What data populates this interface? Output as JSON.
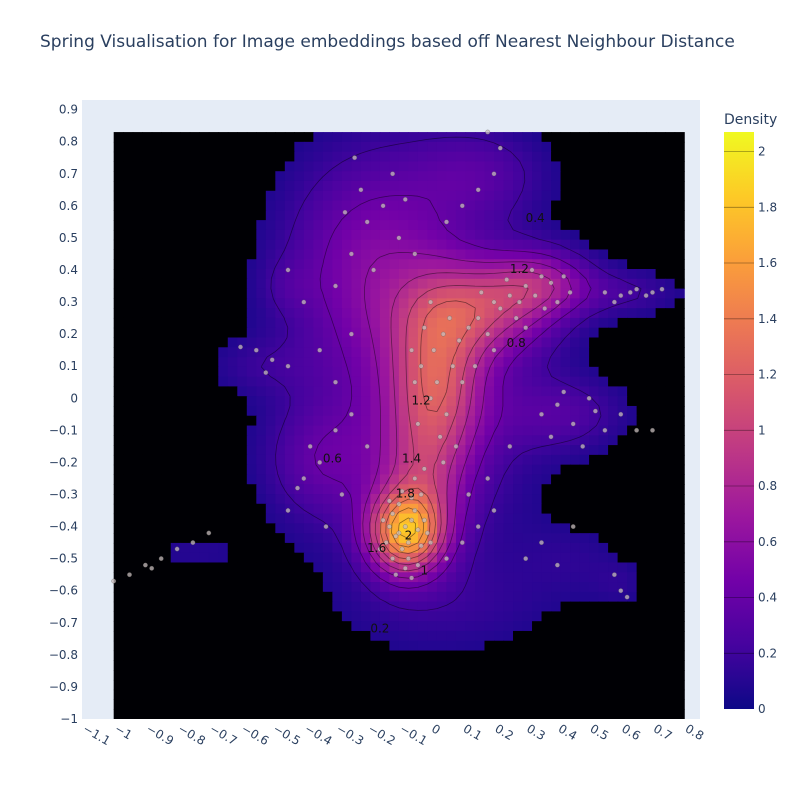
{
  "chart_data": {
    "type": "heatmap",
    "title": "Spring Visualisation for Image embeddings based off Nearest Neighbour Distance",
    "xlabel": "",
    "ylabel": "",
    "xlim": [
      -1.1,
      0.85
    ],
    "ylim": [
      -1.0,
      0.93
    ],
    "x_ticks": [
      "−1.1",
      "−1",
      "−0.9",
      "−0.8",
      "−0.7",
      "−0.6",
      "−0.5",
      "−0.4",
      "−0.3",
      "−0.2",
      "−0.1",
      "0",
      "0.1",
      "0.2",
      "0.3",
      "0.4",
      "0.5",
      "0.6",
      "0.7",
      "0.8"
    ],
    "x_tick_values": [
      -1.1,
      -1,
      -0.9,
      -0.8,
      -0.7,
      -0.6,
      -0.5,
      -0.4,
      -0.3,
      -0.2,
      -0.1,
      0,
      0.1,
      0.2,
      0.3,
      0.4,
      0.5,
      0.6,
      0.7,
      0.8
    ],
    "y_ticks": [
      "0.9",
      "0.8",
      "0.7",
      "0.6",
      "0.5",
      "0.4",
      "0.3",
      "0.2",
      "0.1",
      "0",
      "−0.1",
      "−0.2",
      "−0.3",
      "−0.4",
      "−0.5",
      "−0.6",
      "−0.7",
      "−0.8",
      "−0.9",
      "−1"
    ],
    "y_tick_values": [
      0.9,
      0.8,
      0.7,
      0.6,
      0.5,
      0.4,
      0.3,
      0.2,
      0.1,
      0,
      -0.1,
      -0.2,
      -0.3,
      -0.4,
      -0.5,
      -0.6,
      -0.7,
      -0.8,
      -0.9,
      -1
    ],
    "density_extent": {
      "x": [
        -1.0,
        0.8
      ],
      "y": [
        -1.0,
        0.83
      ]
    },
    "colorbar": {
      "title": "Density",
      "range": [
        0,
        2.07
      ],
      "ticks": [
        "0",
        "0.2",
        "0.4",
        "0.6",
        "0.8",
        "1",
        "1.2",
        "1.4",
        "1.6",
        "1.8",
        "2"
      ],
      "tick_values": [
        0,
        0.2,
        0.4,
        0.6,
        0.8,
        1,
        1.2,
        1.4,
        1.6,
        1.8,
        2
      ],
      "colorscale": [
        "#0d0887",
        "#46039f",
        "#7201a8",
        "#9c179e",
        "#bd3786",
        "#d8576b",
        "#ed7953",
        "#fb9f3a",
        "#fdca26",
        "#f0f921"
      ]
    },
    "contour_levels": [
      0.2,
      0.4,
      0.6,
      0.8,
      1,
      1.2,
      1.4,
      1.6,
      1.8,
      2
    ],
    "contour_labels": [
      {
        "text": "0.4",
        "x": 0.33,
        "y": 0.55
      },
      {
        "text": "1.2",
        "x": 0.28,
        "y": 0.39
      },
      {
        "text": "0.8",
        "x": 0.27,
        "y": 0.16
      },
      {
        "text": "1.2",
        "x": -0.03,
        "y": -0.02
      },
      {
        "text": "0.6",
        "x": -0.31,
        "y": -0.2
      },
      {
        "text": "1.4",
        "x": -0.06,
        "y": -0.2
      },
      {
        "text": "1.8",
        "x": -0.08,
        "y": -0.31
      },
      {
        "text": "2",
        "x": -0.07,
        "y": -0.44
      },
      {
        "text": "1.6",
        "x": -0.17,
        "y": -0.48
      },
      {
        "text": "1",
        "x": -0.02,
        "y": -0.55
      },
      {
        "text": "0.2",
        "x": -0.16,
        "y": -0.73
      }
    ],
    "density_components": [
      {
        "x": -0.08,
        "y": -0.42,
        "sx": 0.08,
        "sy": 0.085,
        "w": 1.45
      },
      {
        "x": -0.03,
        "y": -0.27,
        "sx": 0.09,
        "sy": 0.14,
        "w": 0.45
      },
      {
        "x": 0.02,
        "y": 0.05,
        "sx": 0.1,
        "sy": 0.18,
        "w": 0.8
      },
      {
        "x": 0.17,
        "y": 0.28,
        "sx": 0.15,
        "sy": 0.1,
        "w": 0.7
      },
      {
        "x": 0.35,
        "y": 0.36,
        "sx": 0.11,
        "sy": 0.07,
        "w": 0.55
      },
      {
        "x": -0.05,
        "y": 0.05,
        "sx": 0.25,
        "sy": 0.4,
        "w": 0.4
      },
      {
        "x": -0.2,
        "y": 0.45,
        "sx": 0.18,
        "sy": 0.22,
        "w": 0.35
      },
      {
        "x": 0.15,
        "y": 0.7,
        "sx": 0.15,
        "sy": 0.1,
        "w": 0.25
      },
      {
        "x": 0.42,
        "y": -0.05,
        "sx": 0.14,
        "sy": 0.08,
        "w": 0.25
      },
      {
        "x": 0.62,
        "y": 0.33,
        "sx": 0.13,
        "sy": 0.05,
        "w": 0.2
      },
      {
        "x": -0.35,
        "y": -0.2,
        "sx": 0.12,
        "sy": 0.12,
        "w": 0.25
      },
      {
        "x": -0.55,
        "y": 0.1,
        "sx": 0.12,
        "sy": 0.06,
        "w": 0.12
      },
      {
        "x": -0.75,
        "y": -0.48,
        "sx": 0.14,
        "sy": 0.06,
        "w": 0.1
      },
      {
        "x": 0.45,
        "y": -0.5,
        "sx": 0.12,
        "sy": 0.08,
        "w": 0.1
      },
      {
        "x": 0.6,
        "y": -0.58,
        "sx": 0.06,
        "sy": 0.05,
        "w": 0.1
      },
      {
        "x": -0.45,
        "y": 0.35,
        "sx": 0.06,
        "sy": 0.06,
        "w": 0.1
      },
      {
        "x": 0.1,
        "y": -0.65,
        "sx": 0.25,
        "sy": 0.1,
        "w": 0.1
      }
    ],
    "points": [
      [
        -0.08,
        -0.4
      ],
      [
        -0.06,
        -0.38
      ],
      [
        -0.1,
        -0.42
      ],
      [
        -0.07,
        -0.45
      ],
      [
        -0.04,
        -0.41
      ],
      [
        -0.12,
        -0.36
      ],
      [
        -0.09,
        -0.47
      ],
      [
        -0.05,
        -0.35
      ],
      [
        -0.11,
        -0.43
      ],
      [
        -0.03,
        -0.46
      ],
      [
        -0.13,
        -0.4
      ],
      [
        -0.07,
        -0.5
      ],
      [
        -0.02,
        -0.38
      ],
      [
        -0.14,
        -0.45
      ],
      [
        -0.1,
        -0.33
      ],
      [
        -0.06,
        -0.31
      ],
      [
        -0.01,
        -0.42
      ],
      [
        -0.15,
        -0.38
      ],
      [
        -0.08,
        -0.53
      ],
      [
        -0.04,
        -0.52
      ],
      [
        -0.12,
        -0.5
      ],
      [
        -0.09,
        -0.29
      ],
      [
        -0.03,
        -0.3
      ],
      [
        -0.16,
        -0.47
      ],
      [
        0.0,
        -0.45
      ],
      [
        -0.11,
        -0.55
      ],
      [
        -0.06,
        -0.56
      ],
      [
        -0.13,
        -0.32
      ],
      [
        -0.05,
        -0.25
      ],
      [
        -0.02,
        -0.22
      ],
      [
        0.0,
        0.0
      ],
      [
        0.02,
        0.05
      ],
      [
        -0.03,
        0.1
      ],
      [
        0.05,
        -0.05
      ],
      [
        0.01,
        0.15
      ],
      [
        -0.04,
        -0.08
      ],
      [
        0.04,
        0.2
      ],
      [
        0.07,
        0.1
      ],
      [
        -0.02,
        0.22
      ],
      [
        0.03,
        -0.12
      ],
      [
        0.06,
        0.25
      ],
      [
        -0.05,
        0.05
      ],
      [
        0.09,
        0.18
      ],
      [
        0.0,
        0.3
      ],
      [
        0.08,
        -0.15
      ],
      [
        -0.06,
        0.15
      ],
      [
        0.04,
        -0.2
      ],
      [
        0.1,
        0.05
      ],
      [
        0.15,
        0.25
      ],
      [
        0.2,
        0.3
      ],
      [
        0.25,
        0.32
      ],
      [
        0.3,
        0.35
      ],
      [
        0.35,
        0.38
      ],
      [
        0.18,
        0.2
      ],
      [
        0.22,
        0.28
      ],
      [
        0.28,
        0.3
      ],
      [
        0.33,
        0.32
      ],
      [
        0.38,
        0.36
      ],
      [
        0.12,
        0.22
      ],
      [
        0.16,
        0.33
      ],
      [
        0.24,
        0.37
      ],
      [
        0.4,
        0.3
      ],
      [
        0.42,
        0.38
      ],
      [
        0.27,
        0.25
      ],
      [
        0.32,
        0.4
      ],
      [
        0.2,
        0.15
      ],
      [
        0.14,
        0.1
      ],
      [
        0.36,
        0.28
      ],
      [
        0.44,
        0.33
      ],
      [
        0.3,
        0.22
      ],
      [
        0.55,
        0.33
      ],
      [
        0.6,
        0.32
      ],
      [
        0.65,
        0.34
      ],
      [
        0.7,
        0.33
      ],
      [
        0.73,
        0.34
      ],
      [
        0.58,
        0.3
      ],
      [
        0.63,
        0.33
      ],
      [
        0.68,
        0.32
      ],
      [
        0.35,
        -0.05
      ],
      [
        0.4,
        -0.02
      ],
      [
        0.45,
        -0.08
      ],
      [
        0.5,
        0.0
      ],
      [
        0.55,
        -0.1
      ],
      [
        0.6,
        -0.05
      ],
      [
        0.38,
        -0.12
      ],
      [
        0.48,
        -0.15
      ],
      [
        0.65,
        -0.1
      ],
      [
        0.7,
        -0.1
      ],
      [
        0.42,
        0.02
      ],
      [
        0.52,
        -0.04
      ],
      [
        -0.25,
        0.45
      ],
      [
        -0.2,
        0.55
      ],
      [
        -0.15,
        0.6
      ],
      [
        -0.3,
        0.35
      ],
      [
        -0.1,
        0.5
      ],
      [
        -0.22,
        0.65
      ],
      [
        -0.05,
        0.45
      ],
      [
        -0.18,
        0.4
      ],
      [
        -0.27,
        0.58
      ],
      [
        -0.12,
        0.7
      ],
      [
        -0.24,
        0.75
      ],
      [
        -0.08,
        0.62
      ],
      [
        0.1,
        0.6
      ],
      [
        0.15,
        0.65
      ],
      [
        0.2,
        0.7
      ],
      [
        0.18,
        0.83
      ],
      [
        0.22,
        0.78
      ],
      [
        0.05,
        0.55
      ],
      [
        -0.35,
        -0.2
      ],
      [
        -0.4,
        -0.25
      ],
      [
        -0.3,
        -0.1
      ],
      [
        -0.38,
        -0.15
      ],
      [
        -0.42,
        -0.28
      ],
      [
        -0.28,
        -0.3
      ],
      [
        -0.45,
        -0.35
      ],
      [
        -0.33,
        -0.4
      ],
      [
        -0.25,
        -0.05
      ],
      [
        -0.2,
        -0.15
      ],
      [
        -0.3,
        0.05
      ],
      [
        -0.35,
        0.15
      ],
      [
        -0.25,
        0.2
      ],
      [
        -0.4,
        0.3
      ],
      [
        -0.45,
        0.4
      ],
      [
        -0.55,
        0.15
      ],
      [
        -0.5,
        0.12
      ],
      [
        -0.45,
        0.1
      ],
      [
        -0.6,
        0.16
      ],
      [
        -0.52,
        0.08
      ],
      [
        -1.0,
        -0.57
      ],
      [
        -0.95,
        -0.55
      ],
      [
        -0.9,
        -0.52
      ],
      [
        -0.85,
        -0.5
      ],
      [
        -0.8,
        -0.47
      ],
      [
        -0.75,
        -0.45
      ],
      [
        -0.7,
        -0.42
      ],
      [
        -0.88,
        -0.53
      ],
      [
        0.3,
        -0.5
      ],
      [
        0.35,
        -0.45
      ],
      [
        0.45,
        -0.4
      ],
      [
        0.4,
        -0.52
      ],
      [
        0.58,
        -0.55
      ],
      [
        0.6,
        -0.6
      ],
      [
        0.62,
        -0.62
      ],
      [
        0.2,
        -0.35
      ],
      [
        0.15,
        -0.4
      ],
      [
        0.1,
        -0.45
      ],
      [
        0.05,
        -0.5
      ],
      [
        0.18,
        -0.25
      ],
      [
        0.12,
        -0.3
      ],
      [
        0.25,
        -0.15
      ]
    ]
  }
}
